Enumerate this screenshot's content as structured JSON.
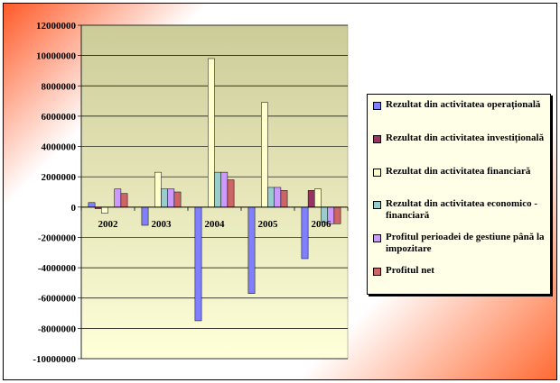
{
  "chart_data": {
    "type": "bar",
    "title": "",
    "xlabel": "",
    "ylabel": "",
    "categories": [
      "2002",
      "2003",
      "2004",
      "2005",
      "2006"
    ],
    "ylim": [
      -10000000,
      12000000
    ],
    "ytick_step": 2000000,
    "ytick_labels": [
      "12000000",
      "10000000",
      "8000000",
      "6000000",
      "4000000",
      "2000000",
      "0",
      "-2000000",
      "-4000000",
      "-6000000",
      "-8000000",
      "-10000000"
    ],
    "grid": true,
    "legend_position": "right",
    "series": [
      {
        "name": "Rezultat din activitatea operațională",
        "color": "#8080ff",
        "values": [
          300000,
          -1200000,
          -7500000,
          -5700000,
          -3400000
        ]
      },
      {
        "name": "Rezultat din activitatea investițională",
        "color": "#993366",
        "values": [
          -100000,
          0,
          0,
          0,
          1100000
        ]
      },
      {
        "name": "Rezultat din activitatea financiară",
        "color": "#ffffcc",
        "values": [
          -400000,
          2300000,
          9800000,
          6900000,
          1200000
        ]
      },
      {
        "name": "Rezultat din activitatea economico - financiară",
        "color": "#99cccc",
        "values": [
          0,
          1200000,
          2300000,
          1300000,
          -1000000
        ]
      },
      {
        "name": "Profitul perioadei de gestiune până la impozitare",
        "color": "#cc99ff",
        "values": [
          1200000,
          1200000,
          2300000,
          1300000,
          -1100000
        ]
      },
      {
        "name": "Profitul net",
        "color": "#cc6666",
        "values": [
          900000,
          1000000,
          1800000,
          1100000,
          -1100000
        ]
      }
    ]
  }
}
